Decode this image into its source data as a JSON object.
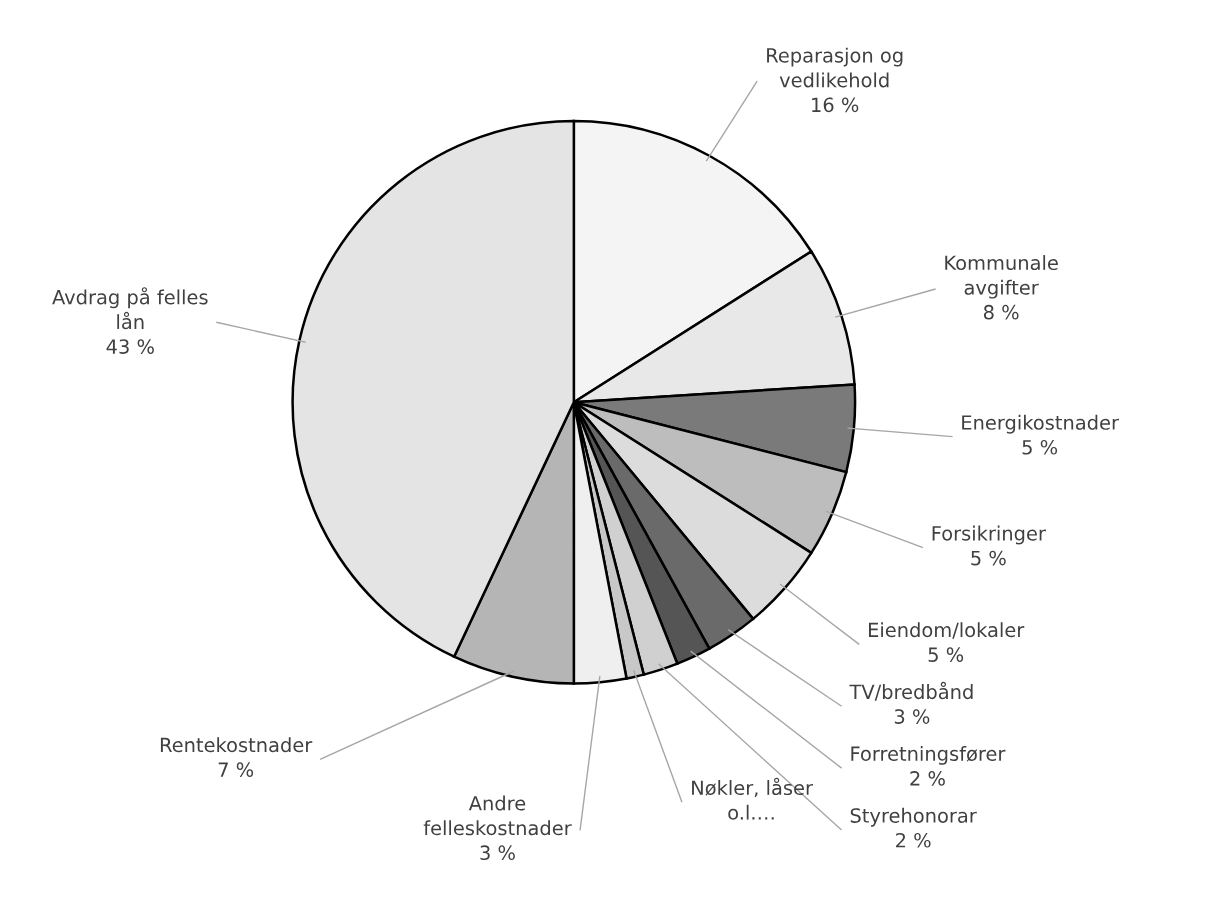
{
  "chart_data": {
    "type": "pie",
    "categories": [
      "Reparasjon og\nvedlikehold",
      "Kommunale\navgifter",
      "Energikostnader",
      "Forsikringer",
      "Eiendom/lokaler",
      "TV/bredbånd",
      "Forretningsfører",
      "Styrehonorar",
      "Nøkler, låser\no.l.…",
      "Andre\nfelleskostnader",
      "Rentekostnader",
      "Avdrag på felles\nlån"
    ],
    "values": [
      16,
      8,
      5,
      5,
      5,
      3,
      2,
      2,
      1,
      3,
      7,
      43
    ],
    "value_labels": [
      "16 %",
      "8 %",
      "5 %",
      "5 %",
      "5 %",
      "3 %",
      "2 %",
      "2 %",
      null,
      "3 %",
      "7 %",
      "43 %"
    ],
    "colors": [
      "#f4f4f4",
      "#e8e8e8",
      "#7a7a7a",
      "#bdbdbd",
      "#dcdcdc",
      "#6a6a6a",
      "#555555",
      "#d0d0d0",
      "#c8c8c8",
      "#efefef",
      "#b5b5b5",
      "#e4e4e4"
    ]
  }
}
